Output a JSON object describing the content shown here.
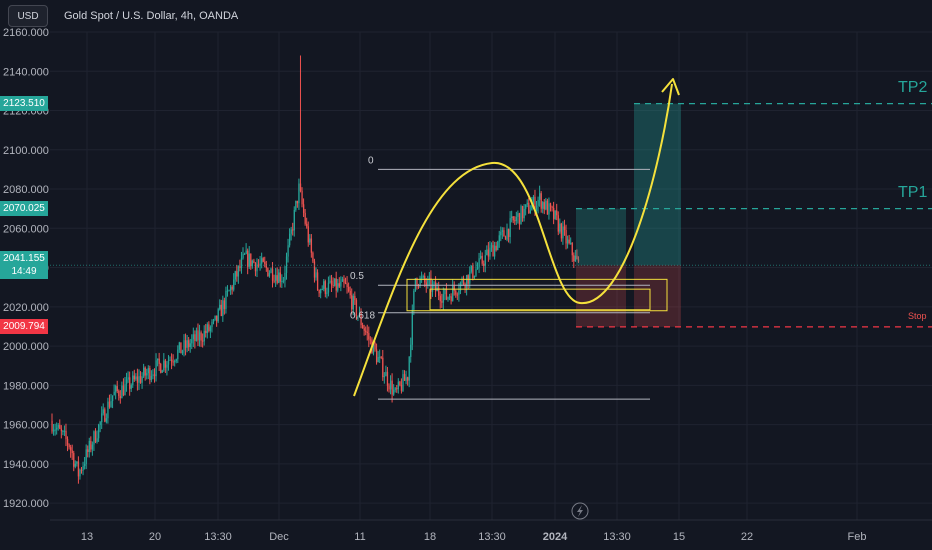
{
  "header": {
    "currency": "USD",
    "title": "Gold Spot / U.S. Dollar, 4h, OANDA"
  },
  "price_axis": {
    "ticks": [
      "2160.000",
      "2140.000",
      "2120.000",
      "2100.000",
      "2080.000",
      "2060.000",
      "2040.000",
      "2020.000",
      "2000.000",
      "1980.000",
      "1960.000",
      "1940.000",
      "1920.000"
    ],
    "tick_values": [
      2160,
      2140,
      2120,
      2100,
      2080,
      2060,
      2040,
      2020,
      2000,
      1980,
      1960,
      1940,
      1920
    ]
  },
  "time_axis": {
    "ticks": [
      "13",
      "20",
      "13:30",
      "Dec",
      "11",
      "18",
      "13:30",
      "2024",
      "13:30",
      "15",
      "22",
      "Feb"
    ]
  },
  "badges": {
    "tp2": {
      "value": "2123.510",
      "color": "#26a69a"
    },
    "tp1": {
      "value": "2070.025",
      "color": "#26a69a"
    },
    "current": {
      "value": "2041.155",
      "countdown": "14:49",
      "color": "#26a69a"
    },
    "stop": {
      "value": "2009.794",
      "color": "#f23645"
    }
  },
  "levels": {
    "tp2": {
      "label": "TP2",
      "price": 2123.51
    },
    "tp1": {
      "label": "TP1",
      "price": 2070.025
    },
    "stop": {
      "label": "Stop",
      "price": 2009.794
    },
    "current": {
      "price": 2041.155
    }
  },
  "fib": {
    "levels": [
      {
        "label": "0",
        "price": 2090
      },
      {
        "label": "0.5",
        "price": 2031
      },
      {
        "label": "0.618",
        "price": 2017
      },
      {
        "label": "",
        "price": 1973
      }
    ]
  },
  "colors": {
    "background": "#131722",
    "up": "#26a69a",
    "down": "#ef5350",
    "grid": "#1f2330",
    "annotation": "#f5e13c"
  },
  "chart_data": {
    "type": "candlestick",
    "title": "Gold Spot / U.S. Dollar, 4h, OANDA",
    "ylim": [
      1912,
      2164
    ],
    "y_ticks": [
      2160,
      2140,
      2120,
      2100,
      2080,
      2060,
      2040,
      2020,
      2000,
      1980,
      1960,
      1940,
      1920
    ],
    "x_ticks": [
      "13",
      "20",
      "13:30",
      "Dec",
      "11",
      "18",
      "13:30",
      "2024",
      "13:30",
      "15",
      "22",
      "Feb"
    ],
    "grid": true,
    "price_segments": [
      {
        "from": 0,
        "to": 12,
        "start": 1962,
        "end": 1950
      },
      {
        "from": 12,
        "to": 18,
        "start": 1950,
        "end": 1935
      },
      {
        "from": 18,
        "to": 40,
        "start": 1935,
        "end": 1975
      },
      {
        "from": 40,
        "to": 70,
        "start": 1975,
        "end": 1990
      },
      {
        "from": 70,
        "to": 105,
        "start": 1990,
        "end": 2010
      },
      {
        "from": 105,
        "to": 125,
        "start": 2010,
        "end": 2045
      },
      {
        "from": 125,
        "to": 150,
        "start": 2045,
        "end": 2035
      },
      {
        "from": 150,
        "to": 160,
        "start": 2035,
        "end": 2080
      },
      {
        "from": 160,
        "to": 172,
        "start": 2080,
        "end": 2030
      },
      {
        "from": 172,
        "to": 190,
        "start": 2030,
        "end": 2030
      },
      {
        "from": 190,
        "to": 210,
        "start": 2030,
        "end": 1995
      },
      {
        "from": 210,
        "to": 222,
        "start": 1995,
        "end": 1975
      },
      {
        "from": 222,
        "to": 230,
        "start": 1975,
        "end": 1985
      },
      {
        "from": 230,
        "to": 235,
        "start": 1985,
        "end": 2035
      },
      {
        "from": 235,
        "to": 255,
        "start": 2035,
        "end": 2025
      },
      {
        "from": 255,
        "to": 275,
        "start": 2025,
        "end": 2040
      },
      {
        "from": 275,
        "to": 300,
        "start": 2040,
        "end": 2065
      },
      {
        "from": 300,
        "to": 315,
        "start": 2065,
        "end": 2075
      },
      {
        "from": 315,
        "to": 325,
        "start": 2075,
        "end": 2065
      },
      {
        "from": 325,
        "to": 340,
        "start": 2065,
        "end": 2041
      }
    ],
    "wick_spikes": [
      {
        "index": 160,
        "high": 2148
      }
    ],
    "trade_setup": {
      "entry": 2041.155,
      "stop": 2009.794,
      "tp1": 2070.025,
      "tp2": 2123.51
    }
  }
}
